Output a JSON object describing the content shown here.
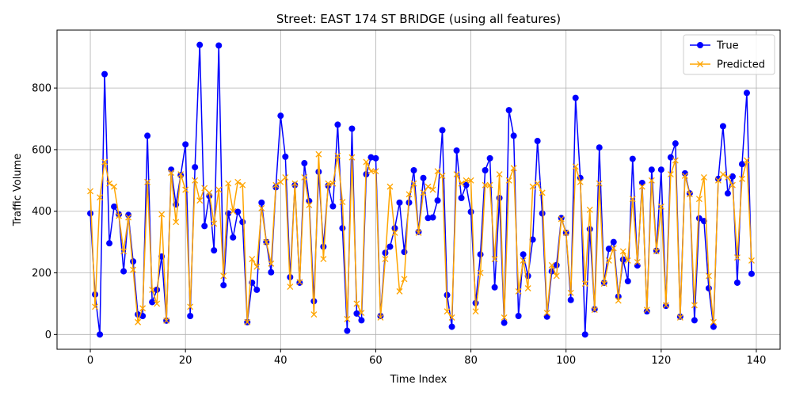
{
  "chart_data": {
    "type": "line",
    "title": "Street: EAST 174 ST BRIDGE (using all features)",
    "xlabel": "Time Index",
    "ylabel": "Traffic Volume",
    "xlim": [
      -7,
      145
    ],
    "ylim": [
      -48,
      988
    ],
    "x_ticks": [
      0,
      20,
      40,
      60,
      80,
      100,
      120,
      140
    ],
    "y_ticks": [
      0,
      200,
      400,
      600,
      800
    ],
    "grid": true,
    "legend_position": "top-right",
    "series": [
      {
        "name": "True",
        "color": "#0000ff",
        "marker": "circle",
        "values": [
          393,
          130,
          0,
          845,
          296,
          415,
          390,
          205,
          388,
          237,
          65,
          60,
          645,
          105,
          145,
          253,
          45,
          535,
          422,
          517,
          617,
          60,
          543,
          940,
          352,
          450,
          273,
          938,
          160,
          393,
          315,
          398,
          365,
          40,
          168,
          145,
          428,
          300,
          202,
          478,
          710,
          577,
          186,
          485,
          168,
          556,
          433,
          108,
          528,
          285,
          483,
          416,
          681,
          345,
          12,
          668,
          68,
          46,
          520,
          575,
          572,
          60,
          265,
          285,
          345,
          428,
          268,
          428,
          533,
          333,
          508,
          378,
          380,
          435,
          663,
          128,
          25,
          597,
          443,
          485,
          398,
          102,
          260,
          533,
          572,
          153,
          443,
          38,
          728,
          645,
          60,
          260,
          190,
          308,
          628,
          393,
          58,
          205,
          225,
          378,
          330,
          112,
          768,
          508,
          0,
          342,
          82,
          607,
          168,
          278,
          300,
          123,
          243,
          173,
          570,
          224,
          492,
          75,
          535,
          272,
          535,
          93,
          575,
          620,
          58,
          523,
          458,
          46,
          377,
          368,
          150,
          25,
          505,
          676,
          458,
          513,
          168,
          553,
          784,
          197
        ]
      },
      {
        "name": "Predicted",
        "color": "#ffa500",
        "marker": "x",
        "values": [
          465,
          90,
          445,
          560,
          490,
          480,
          385,
          270,
          380,
          210,
          40,
          85,
          495,
          145,
          100,
          390,
          45,
          525,
          365,
          520,
          470,
          90,
          500,
          435,
          475,
          460,
          360,
          470,
          190,
          490,
          400,
          495,
          485,
          40,
          245,
          220,
          410,
          300,
          230,
          485,
          495,
          510,
          155,
          490,
          170,
          510,
          420,
          65,
          585,
          245,
          490,
          490,
          580,
          430,
          50,
          575,
          100,
          70,
          560,
          530,
          530,
          55,
          245,
          480,
          330,
          140,
          180,
          455,
          490,
          330,
          460,
          480,
          470,
          530,
          515,
          75,
          55,
          520,
          490,
          500,
          500,
          75,
          200,
          485,
          485,
          245,
          520,
          55,
          500,
          540,
          140,
          240,
          150,
          480,
          490,
          460,
          70,
          225,
          190,
          375,
          330,
          135,
          545,
          495,
          165,
          405,
          80,
          490,
          165,
          240,
          280,
          110,
          270,
          240,
          440,
          235,
          480,
          80,
          500,
          270,
          415,
          95,
          520,
          565,
          55,
          515,
          455,
          95,
          440,
          510,
          190,
          40,
          500,
          520,
          510,
          485,
          250,
          505,
          565,
          240
        ]
      }
    ]
  }
}
